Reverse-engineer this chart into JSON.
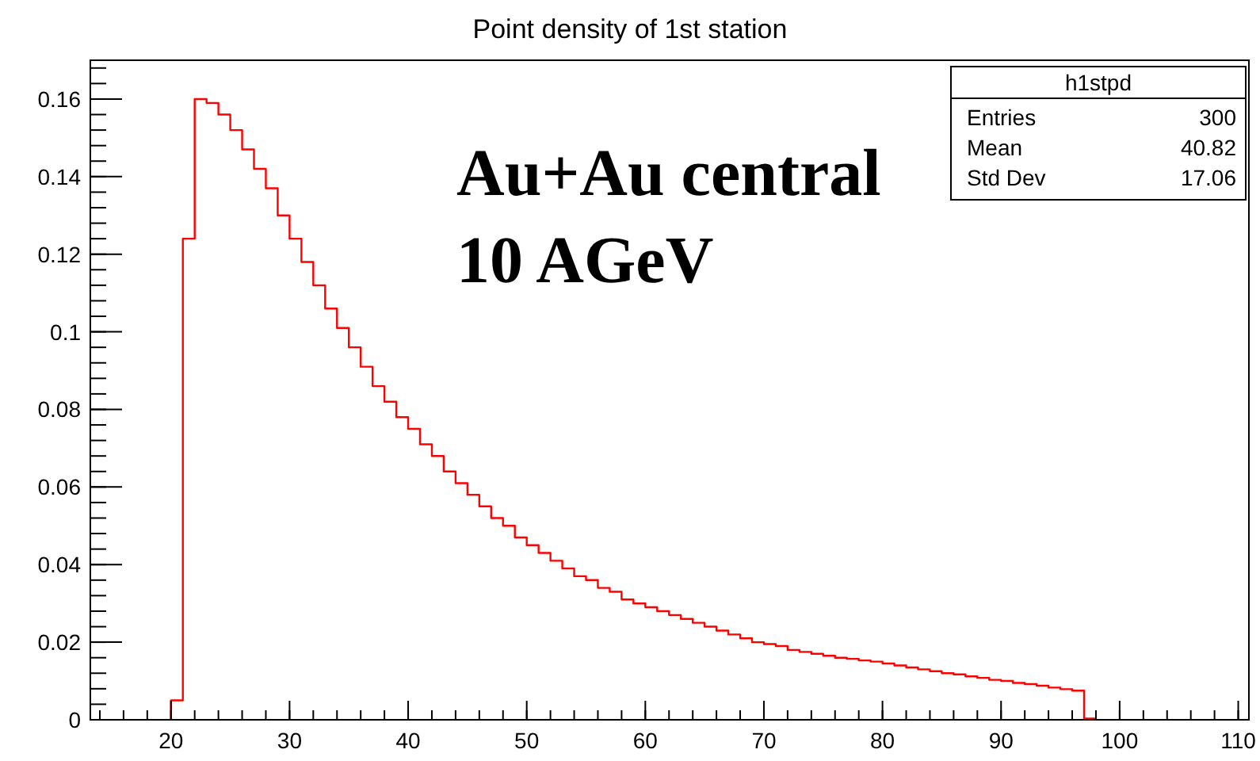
{
  "chart_data": {
    "type": "histogram",
    "title": "Point density of 1st station",
    "bins": [
      20,
      21,
      22,
      23,
      24,
      25,
      26,
      27,
      28,
      29,
      30,
      31,
      32,
      33,
      34,
      35,
      36,
      37,
      38,
      39,
      40,
      41,
      42,
      43,
      44,
      45,
      46,
      47,
      48,
      49,
      50,
      51,
      52,
      53,
      54,
      55,
      56,
      57,
      58,
      59,
      60,
      61,
      62,
      63,
      64,
      65,
      66,
      67,
      68,
      69,
      70,
      71,
      72,
      73,
      74,
      75,
      76,
      77,
      78,
      79,
      80,
      81,
      82,
      83,
      84,
      85,
      86,
      87,
      88,
      89,
      90,
      91,
      92,
      93,
      94,
      95,
      96,
      97,
      98
    ],
    "values": [
      0.005,
      0.124,
      0.16,
      0.159,
      0.156,
      0.152,
      0.147,
      0.142,
      0.137,
      0.13,
      0.124,
      0.118,
      0.112,
      0.106,
      0.101,
      0.096,
      0.091,
      0.086,
      0.082,
      0.078,
      0.075,
      0.071,
      0.068,
      0.064,
      0.061,
      0.058,
      0.055,
      0.052,
      0.05,
      0.047,
      0.045,
      0.043,
      0.041,
      0.039,
      0.037,
      0.036,
      0.034,
      0.033,
      0.031,
      0.03,
      0.029,
      0.028,
      0.027,
      0.026,
      0.025,
      0.024,
      0.023,
      0.022,
      0.021,
      0.02,
      0.0195,
      0.019,
      0.018,
      0.0175,
      0.017,
      0.0165,
      0.016,
      0.0157,
      0.0153,
      0.015,
      0.0145,
      0.014,
      0.0135,
      0.013,
      0.0125,
      0.012,
      0.0117,
      0.0112,
      0.0108,
      0.0103,
      0.01,
      0.0095,
      0.0092,
      0.0088,
      0.0083,
      0.0079,
      0.0075,
      0.0003
    ],
    "color": "#ff0000",
    "xlim": [
      13.2,
      110.9
    ],
    "xticks": [
      20,
      30,
      40,
      50,
      60,
      70,
      80,
      90,
      100,
      110
    ],
    "ylim": [
      0,
      0.17
    ],
    "yticks": [
      0,
      0.02,
      0.04,
      0.06,
      0.08,
      0.1,
      0.12,
      0.14,
      0.16
    ],
    "grid": false,
    "annotations": [
      "Au+Au central",
      "10 AGeV",
      "h1stpd",
      "Entries",
      "300",
      "Mean",
      "40.82",
      "Std Dev",
      "17.06"
    ]
  }
}
